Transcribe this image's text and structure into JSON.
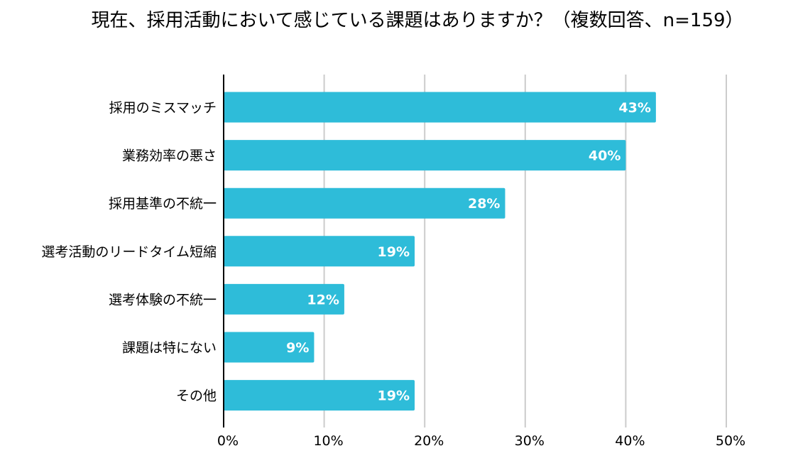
{
  "chart_data": {
    "type": "bar",
    "orientation": "horizontal",
    "title": "現在、採用活動において感じている課題はありますか？（複数回答、n=159）",
    "categories": [
      "採用のミスマッチ",
      "業務効率の悪さ",
      "採用基準の不統一",
      "選考活動のリードタイム短縮",
      "選考体験の不統一",
      "課題は特にない",
      "その他"
    ],
    "values": [
      43,
      40,
      28,
      19,
      12,
      9,
      19
    ],
    "value_labels": [
      "43%",
      "40%",
      "28%",
      "19%",
      "12%",
      "9%",
      "19%"
    ],
    "xlim": [
      0,
      50
    ],
    "xticks": [
      0,
      10,
      20,
      30,
      40,
      50
    ],
    "xtick_labels": [
      "0%",
      "10%",
      "20%",
      "30%",
      "40%",
      "50%"
    ],
    "xlabel": "",
    "ylabel": "",
    "grid": true,
    "legend": "none",
    "bar_color": "#2ebcd9",
    "grid_color": "#cccccc",
    "axis_color": "#000000"
  }
}
